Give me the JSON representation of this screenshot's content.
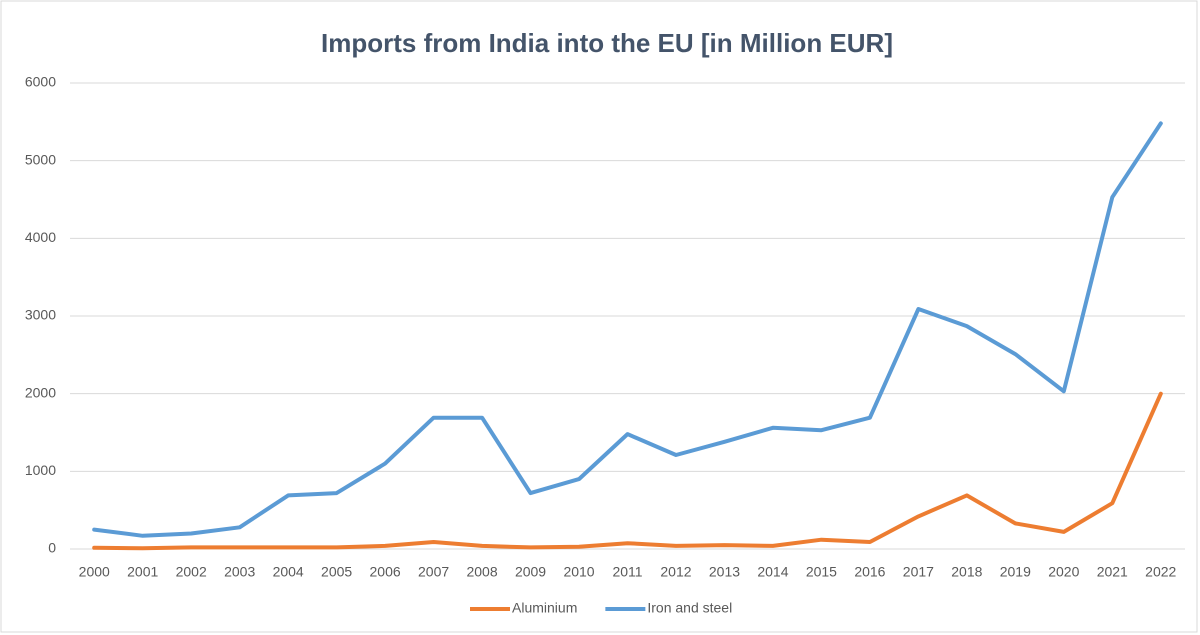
{
  "chart_data": {
    "type": "line",
    "title": "Imports from India into the EU [in Million EUR]",
    "categories": [
      "2000",
      "2001",
      "2002",
      "2003",
      "2004",
      "2005",
      "2006",
      "2007",
      "2008",
      "2009",
      "2010",
      "2011",
      "2012",
      "2013",
      "2014",
      "2015",
      "2016",
      "2017",
      "2018",
      "2019",
      "2020",
      "2021",
      "2022"
    ],
    "series": [
      {
        "name": "Aluminium",
        "color": "#ed7d31",
        "values": [
          15,
          10,
          20,
          20,
          20,
          20,
          40,
          90,
          40,
          20,
          30,
          75,
          40,
          50,
          40,
          120,
          90,
          420,
          690,
          330,
          220,
          590,
          2000
        ]
      },
      {
        "name": "Iron and steel",
        "color": "#5b9bd5",
        "values": [
          250,
          170,
          200,
          280,
          690,
          720,
          1100,
          1690,
          1690,
          720,
          900,
          1480,
          1210,
          1380,
          1560,
          1530,
          1690,
          3090,
          2870,
          2510,
          2030,
          4530,
          5480
        ]
      }
    ],
    "ylim": [
      0,
      6000
    ],
    "yticks": [
      0,
      1000,
      2000,
      3000,
      4000,
      5000,
      6000
    ],
    "grid": true,
    "legend": "bottom"
  }
}
